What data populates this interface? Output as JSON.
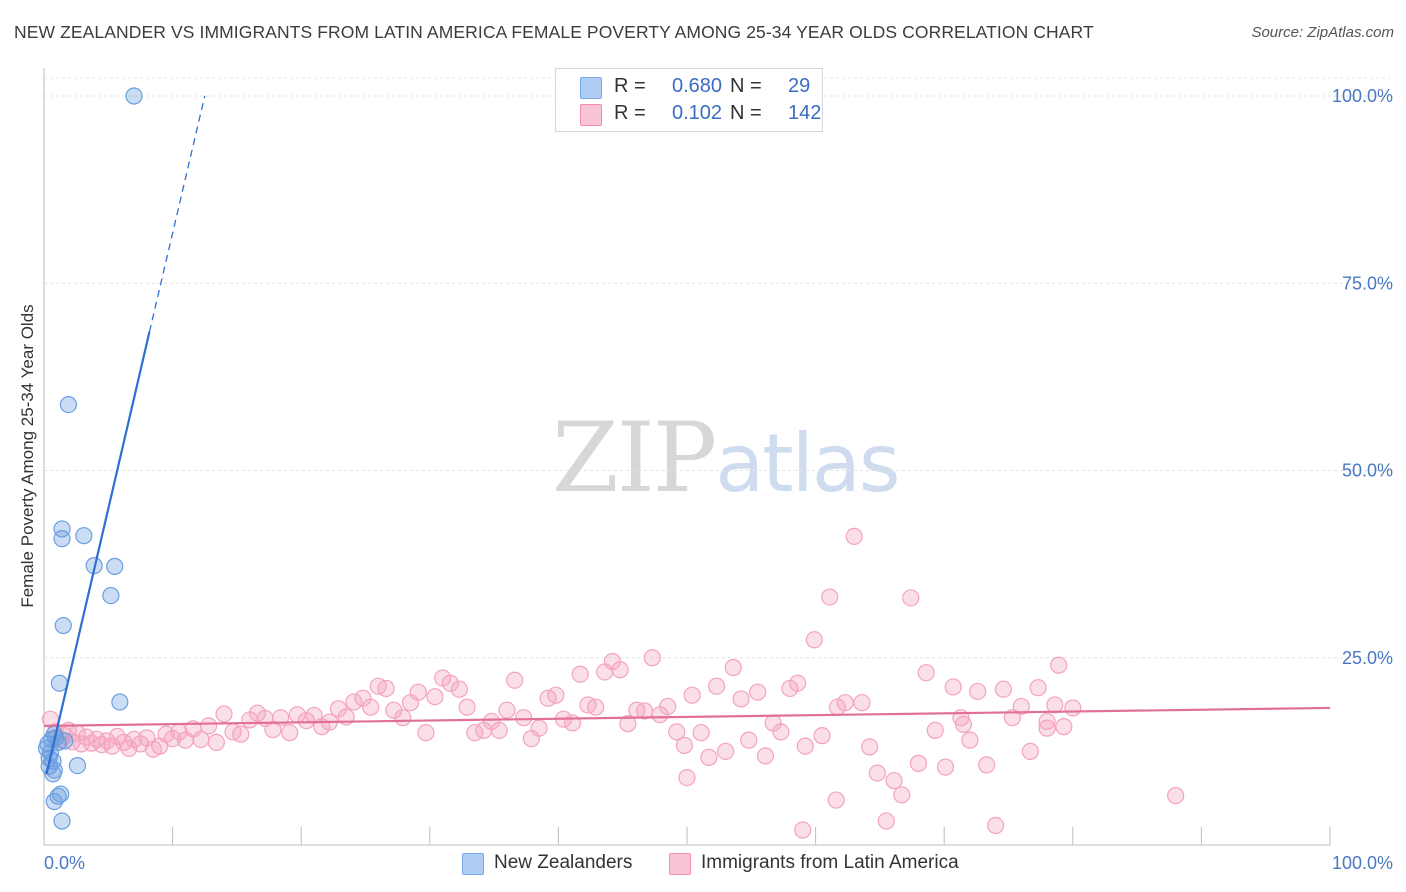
{
  "title": "NEW ZEALANDER VS IMMIGRANTS FROM LATIN AMERICA FEMALE POVERTY AMONG 25-34 YEAR OLDS CORRELATION CHART",
  "source": "Source: ZipAtlas.com",
  "watermark": {
    "zip": "ZIP",
    "atlas": "atlas"
  },
  "legend_top": {
    "rows": [
      {
        "r_label": "R =",
        "r_value": "0.680",
        "n_label": "N =",
        "n_value": "29",
        "color": "#aeccf4"
      },
      {
        "r_label": "R =",
        "r_value": "0.102",
        "n_label": "N =",
        "n_value": "142",
        "color": "#f9c4d4"
      }
    ]
  },
  "legend_bottom": {
    "items": [
      {
        "label": "New Zealanders",
        "color": "#aeccf4"
      },
      {
        "label": "Immigrants from Latin America",
        "color": "#f9c4d4"
      }
    ]
  },
  "chart_data": {
    "type": "scatter",
    "title": "NEW ZEALANDER VS IMMIGRANTS FROM LATIN AMERICA FEMALE POVERTY AMONG 25-34 YEAR OLDS CORRELATION CHART",
    "xlabel": "",
    "ylabel": "Female Poverty Among 25-34 Year Olds",
    "xlim": [
      0,
      100
    ],
    "ylim": [
      0,
      100
    ],
    "x_tick_labels": [
      "0.0%",
      "100.0%"
    ],
    "y_tick_labels": [
      "25.0%",
      "50.0%",
      "75.0%",
      "100.0%"
    ],
    "y_ticks": [
      25,
      50,
      75,
      100
    ],
    "grid": true,
    "legend_position": "bottom",
    "series": [
      {
        "name": "New Zealanders",
        "color": "#6a9fe0",
        "line_color": "#2f6fd0",
        "trend": {
          "x": [
            0.2,
            8.2
          ],
          "y": [
            9.5,
            68.5
          ],
          "dash_to": [
            12.5,
            100
          ]
        },
        "points": [
          [
            7.0,
            100.0
          ],
          [
            1.9,
            58.8
          ],
          [
            1.4,
            42.2
          ],
          [
            3.1,
            41.3
          ],
          [
            1.4,
            40.9
          ],
          [
            3.9,
            37.3
          ],
          [
            5.5,
            37.2
          ],
          [
            5.2,
            33.3
          ],
          [
            1.5,
            29.3
          ],
          [
            5.9,
            19.1
          ],
          [
            1.2,
            21.6
          ],
          [
            0.8,
            14.8
          ],
          [
            0.6,
            14.1
          ],
          [
            1.1,
            13.7
          ],
          [
            0.3,
            13.5
          ],
          [
            0.5,
            12.3
          ],
          [
            0.7,
            11.2
          ],
          [
            0.4,
            10.5
          ],
          [
            0.8,
            10.0
          ],
          [
            0.7,
            9.5
          ],
          [
            2.6,
            10.6
          ],
          [
            1.3,
            6.8
          ],
          [
            1.1,
            6.5
          ],
          [
            0.8,
            5.8
          ],
          [
            1.4,
            3.2
          ],
          [
            0.2,
            12.9
          ],
          [
            0.9,
            14.3
          ],
          [
            0.4,
            11.6
          ],
          [
            1.6,
            13.9
          ]
        ]
      },
      {
        "name": "Immigrants from Latin America",
        "color": "#f4a3bd",
        "line_color": "#e0709a",
        "trend": {
          "x": [
            0,
            100
          ],
          "y": [
            15.9,
            18.3
          ]
        },
        "points": [
          [
            0.5,
            16.8
          ],
          [
            0.9,
            15.1
          ],
          [
            1.3,
            14.0
          ],
          [
            1.6,
            14.6
          ],
          [
            1.9,
            15.3
          ],
          [
            2.2,
            13.8
          ],
          [
            2.6,
            14.9
          ],
          [
            2.9,
            13.5
          ],
          [
            3.3,
            14.4
          ],
          [
            3.7,
            13.6
          ],
          [
            4.1,
            14.1
          ],
          [
            4.5,
            13.4
          ],
          [
            4.9,
            13.9
          ],
          [
            5.3,
            13.2
          ],
          [
            5.7,
            14.5
          ],
          [
            6.2,
            13.7
          ],
          [
            6.6,
            12.9
          ],
          [
            7.0,
            14.1
          ],
          [
            7.5,
            13.5
          ],
          [
            8.0,
            14.3
          ],
          [
            8.5,
            12.8
          ],
          [
            9.0,
            13.2
          ],
          [
            9.5,
            14.8
          ],
          [
            10.0,
            14.2
          ],
          [
            10.5,
            15.1
          ],
          [
            11.0,
            14.0
          ],
          [
            11.6,
            15.5
          ],
          [
            12.2,
            14.1
          ],
          [
            12.8,
            15.9
          ],
          [
            13.4,
            13.7
          ],
          [
            14.0,
            17.5
          ],
          [
            14.7,
            15.1
          ],
          [
            15.3,
            14.8
          ],
          [
            16.0,
            16.7
          ],
          [
            16.6,
            17.6
          ],
          [
            17.2,
            16.9
          ],
          [
            17.8,
            15.4
          ],
          [
            18.4,
            17.0
          ],
          [
            19.1,
            15.0
          ],
          [
            19.7,
            17.4
          ],
          [
            20.4,
            16.6
          ],
          [
            21.0,
            17.3
          ],
          [
            21.6,
            15.8
          ],
          [
            22.2,
            16.4
          ],
          [
            22.9,
            18.2
          ],
          [
            23.5,
            17.1
          ],
          [
            24.1,
            19.1
          ],
          [
            24.8,
            19.6
          ],
          [
            25.4,
            18.4
          ],
          [
            26.0,
            21.2
          ],
          [
            26.6,
            20.9
          ],
          [
            27.2,
            18.0
          ],
          [
            27.9,
            17.0
          ],
          [
            28.5,
            19.0
          ],
          [
            29.1,
            20.4
          ],
          [
            29.7,
            15.0
          ],
          [
            30.4,
            19.8
          ],
          [
            31.0,
            22.3
          ],
          [
            31.6,
            21.6
          ],
          [
            32.3,
            20.8
          ],
          [
            32.9,
            18.4
          ],
          [
            33.5,
            15.0
          ],
          [
            34.2,
            15.3
          ],
          [
            34.8,
            16.5
          ],
          [
            35.4,
            15.3
          ],
          [
            36.0,
            18.0
          ],
          [
            36.6,
            22.0
          ],
          [
            37.3,
            17.0
          ],
          [
            37.9,
            14.2
          ],
          [
            38.5,
            15.6
          ],
          [
            39.2,
            19.6
          ],
          [
            39.8,
            20.0
          ],
          [
            40.4,
            16.8
          ],
          [
            41.1,
            16.3
          ],
          [
            41.7,
            22.8
          ],
          [
            42.3,
            18.7
          ],
          [
            42.9,
            18.4
          ],
          [
            43.6,
            23.1
          ],
          [
            44.2,
            24.5
          ],
          [
            44.8,
            23.4
          ],
          [
            45.4,
            16.2
          ],
          [
            46.1,
            18.0
          ],
          [
            46.7,
            17.9
          ],
          [
            47.3,
            25.0
          ],
          [
            47.9,
            17.4
          ],
          [
            48.5,
            18.5
          ],
          [
            49.2,
            15.1
          ],
          [
            49.8,
            13.3
          ],
          [
            50.4,
            20.0
          ],
          [
            51.1,
            15.0
          ],
          [
            51.7,
            11.7
          ],
          [
            52.3,
            21.2
          ],
          [
            53.0,
            12.5
          ],
          [
            53.6,
            23.7
          ],
          [
            54.2,
            19.5
          ],
          [
            54.8,
            14.0
          ],
          [
            55.5,
            20.4
          ],
          [
            56.1,
            11.9
          ],
          [
            56.7,
            16.3
          ],
          [
            57.3,
            15.1
          ],
          [
            58.0,
            20.9
          ],
          [
            58.6,
            21.6
          ],
          [
            59.2,
            13.2
          ],
          [
            59.9,
            27.4
          ],
          [
            60.5,
            14.6
          ],
          [
            61.1,
            33.1
          ],
          [
            61.7,
            18.4
          ],
          [
            62.3,
            19.0
          ],
          [
            63.0,
            41.2
          ],
          [
            63.6,
            19.0
          ],
          [
            64.2,
            13.1
          ],
          [
            64.8,
            9.6
          ],
          [
            65.5,
            3.2
          ],
          [
            66.1,
            8.6
          ],
          [
            66.7,
            6.7
          ],
          [
            67.4,
            33.0
          ],
          [
            68.0,
            10.9
          ],
          [
            68.6,
            23.0
          ],
          [
            69.3,
            15.3
          ],
          [
            70.1,
            10.4
          ],
          [
            70.7,
            21.1
          ],
          [
            71.3,
            17.0
          ],
          [
            72.0,
            14.0
          ],
          [
            72.6,
            20.5
          ],
          [
            73.3,
            10.7
          ],
          [
            74.0,
            2.6
          ],
          [
            74.6,
            20.8
          ],
          [
            75.3,
            17.0
          ],
          [
            76.0,
            18.5
          ],
          [
            76.7,
            12.5
          ],
          [
            77.3,
            21.0
          ],
          [
            78.0,
            16.5
          ],
          [
            78.6,
            18.7
          ],
          [
            79.3,
            15.8
          ],
          [
            78.0,
            15.6
          ],
          [
            78.9,
            24.0
          ],
          [
            80.0,
            18.3
          ],
          [
            61.6,
            6.0
          ],
          [
            59.0,
            2.0
          ],
          [
            50.0,
            9.0
          ],
          [
            88.0,
            6.6
          ],
          [
            71.5,
            16.1
          ]
        ]
      }
    ]
  }
}
